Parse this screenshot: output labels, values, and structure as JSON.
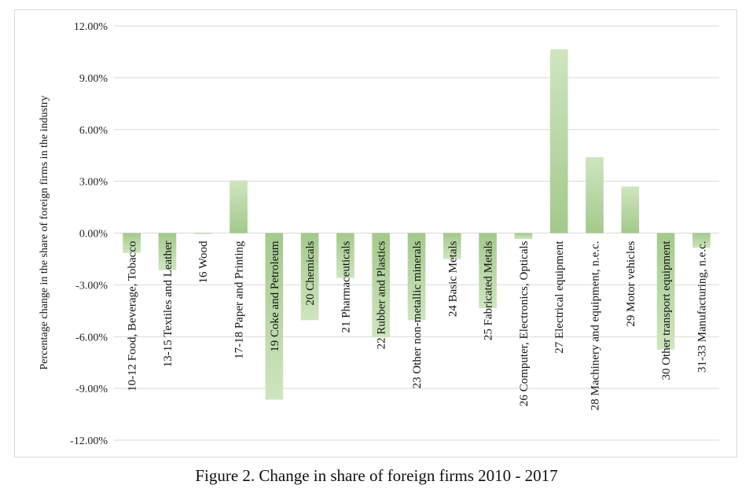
{
  "caption": "Figure 2. Change in share of foreign firms 2010 - 2017",
  "chart_data": {
    "type": "bar",
    "ylabel": "Percentage change in the share of foreign firms in the industry",
    "ylim": [
      -0.12,
      0.12
    ],
    "yticks": [
      "12.00%",
      "9.00%",
      "6.00%",
      "3.00%",
      "0.00%",
      "-3.00%",
      "-6.00%",
      "-9.00%",
      "-12.00%"
    ],
    "grid": true,
    "categories": [
      "10-12 Food, Beverage, Tobacco",
      "13-15 Textiles and Leather",
      "16 Wood",
      "17-18 Paper and Printing",
      "19 Coke and Petroleum",
      "20 Chemicals",
      "21 Pharmaceuticals",
      "22 Rubber and Plastics",
      "23 Other non-metallic minerals",
      "24 Basic Metals",
      "25 Fabricated Metals",
      "26 Computer, Electronics, Opticals",
      "27 Electrical equipment",
      "28 Machinery and equipment, n.e.c.",
      "29 Motor vehicles",
      "30 Other transport equipment",
      "31-33 Manufacturing, n.e.c."
    ],
    "values": [
      -0.0115,
      -0.0215,
      -0.0005,
      0.0305,
      -0.0965,
      -0.0505,
      -0.026,
      -0.0605,
      -0.0505,
      -0.015,
      -0.0435,
      -0.0035,
      0.1065,
      0.044,
      0.027,
      -0.0675,
      -0.0085
    ],
    "colors": {
      "bar_light": "#c6e0b4",
      "bar_dark": "#9dc683",
      "grid": "#d9d9d9"
    }
  }
}
